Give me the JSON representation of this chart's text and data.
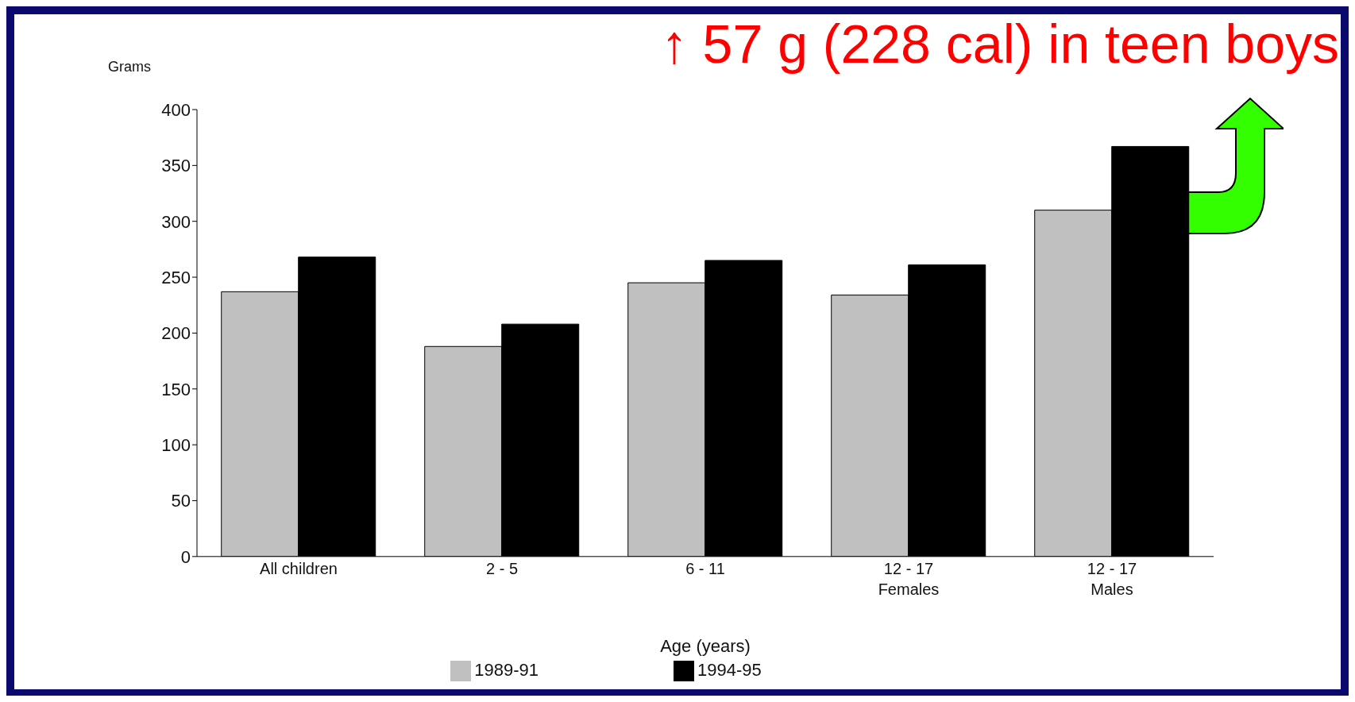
{
  "chart_data": {
    "type": "bar",
    "title": "↑ 57 g (228 cal) in teen boys",
    "ylabel": "Grams",
    "xlabel": "Age (years)",
    "categories": [
      "All children",
      "2 - 5",
      "6 - 11",
      "12 - 17\nFemales",
      "12 - 17\nMales"
    ],
    "series": [
      {
        "name": "1989-91",
        "color": "#c0c0c0",
        "values": [
          237,
          188,
          245,
          234,
          310
        ]
      },
      {
        "name": "1994-95",
        "color": "#000000",
        "values": [
          268,
          208,
          265,
          261,
          367
        ]
      }
    ],
    "ylim": [
      0,
      400
    ],
    "yticks": [
      0,
      50,
      100,
      150,
      200,
      250,
      300,
      350,
      400
    ],
    "grid": false,
    "legend": "bottom"
  }
}
